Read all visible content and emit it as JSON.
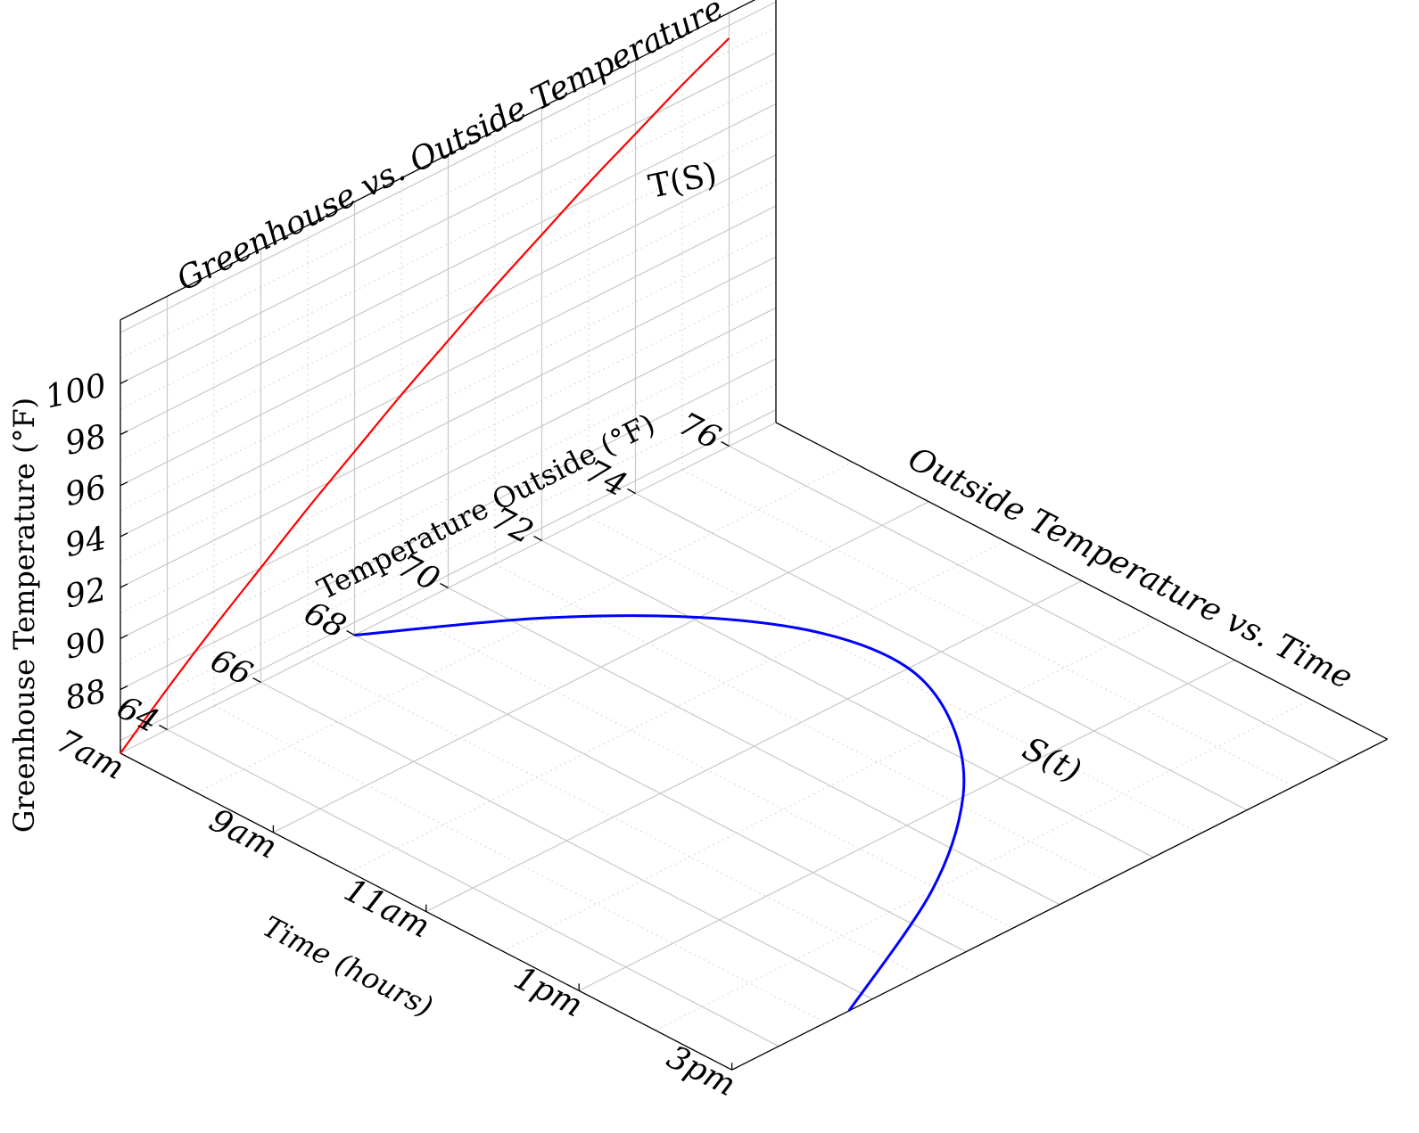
{
  "chart_data": [
    {
      "type": "line",
      "title": "Greenhouse vs.  Outside Temperature",
      "xlabel": "Temperature Outside (°F)",
      "ylabel": "Greenhouse Temperature (°F)",
      "xlim": [
        63,
        77
      ],
      "ylim": [
        85.5,
        102.5
      ],
      "x_ticks": [
        64,
        66,
        68,
        70,
        72,
        74,
        76
      ],
      "x_tick_labels": [
        "64",
        "66",
        "68",
        "70",
        "72",
        "74",
        "76"
      ],
      "y_ticks": [
        88,
        90,
        92,
        94,
        96,
        98,
        100
      ],
      "y_tick_labels": [
        "88",
        "90",
        "92",
        "94",
        "96",
        "98",
        "100"
      ],
      "grid": true,
      "series": [
        {
          "name": "T(S)",
          "color": "#ff0000",
          "x": [
            63,
            64,
            65,
            66,
            67,
            68,
            69,
            70,
            71,
            72,
            73,
            74,
            75,
            76
          ],
          "y": [
            85.5,
            87.1,
            88.6,
            90.0,
            91.4,
            92.7,
            94.0,
            95.2,
            96.4,
            97.5,
            98.6,
            99.6,
            100.6,
            101.5
          ]
        }
      ]
    },
    {
      "type": "line",
      "title": "Outside Temperature vs.  Time",
      "xlabel": "Time (hours)",
      "ylabel": "Temperature Outside (°F)",
      "xlim": [
        7,
        15
      ],
      "ylim": [
        63,
        77
      ],
      "x_ticks": [
        7,
        9,
        11,
        13,
        15
      ],
      "x_tick_labels": [
        "7am",
        "9am",
        "11am",
        "1pm",
        "3pm"
      ],
      "grid": true,
      "series": [
        {
          "name": "S(t)",
          "color": "#0000ff",
          "x": [
            7,
            8,
            9,
            10,
            11,
            12,
            13,
            14,
            15
          ],
          "y": [
            68,
            70.4,
            72.1,
            73.1,
            73.3,
            72.6,
            71.2,
            68.9,
            65.5
          ]
        }
      ]
    }
  ]
}
